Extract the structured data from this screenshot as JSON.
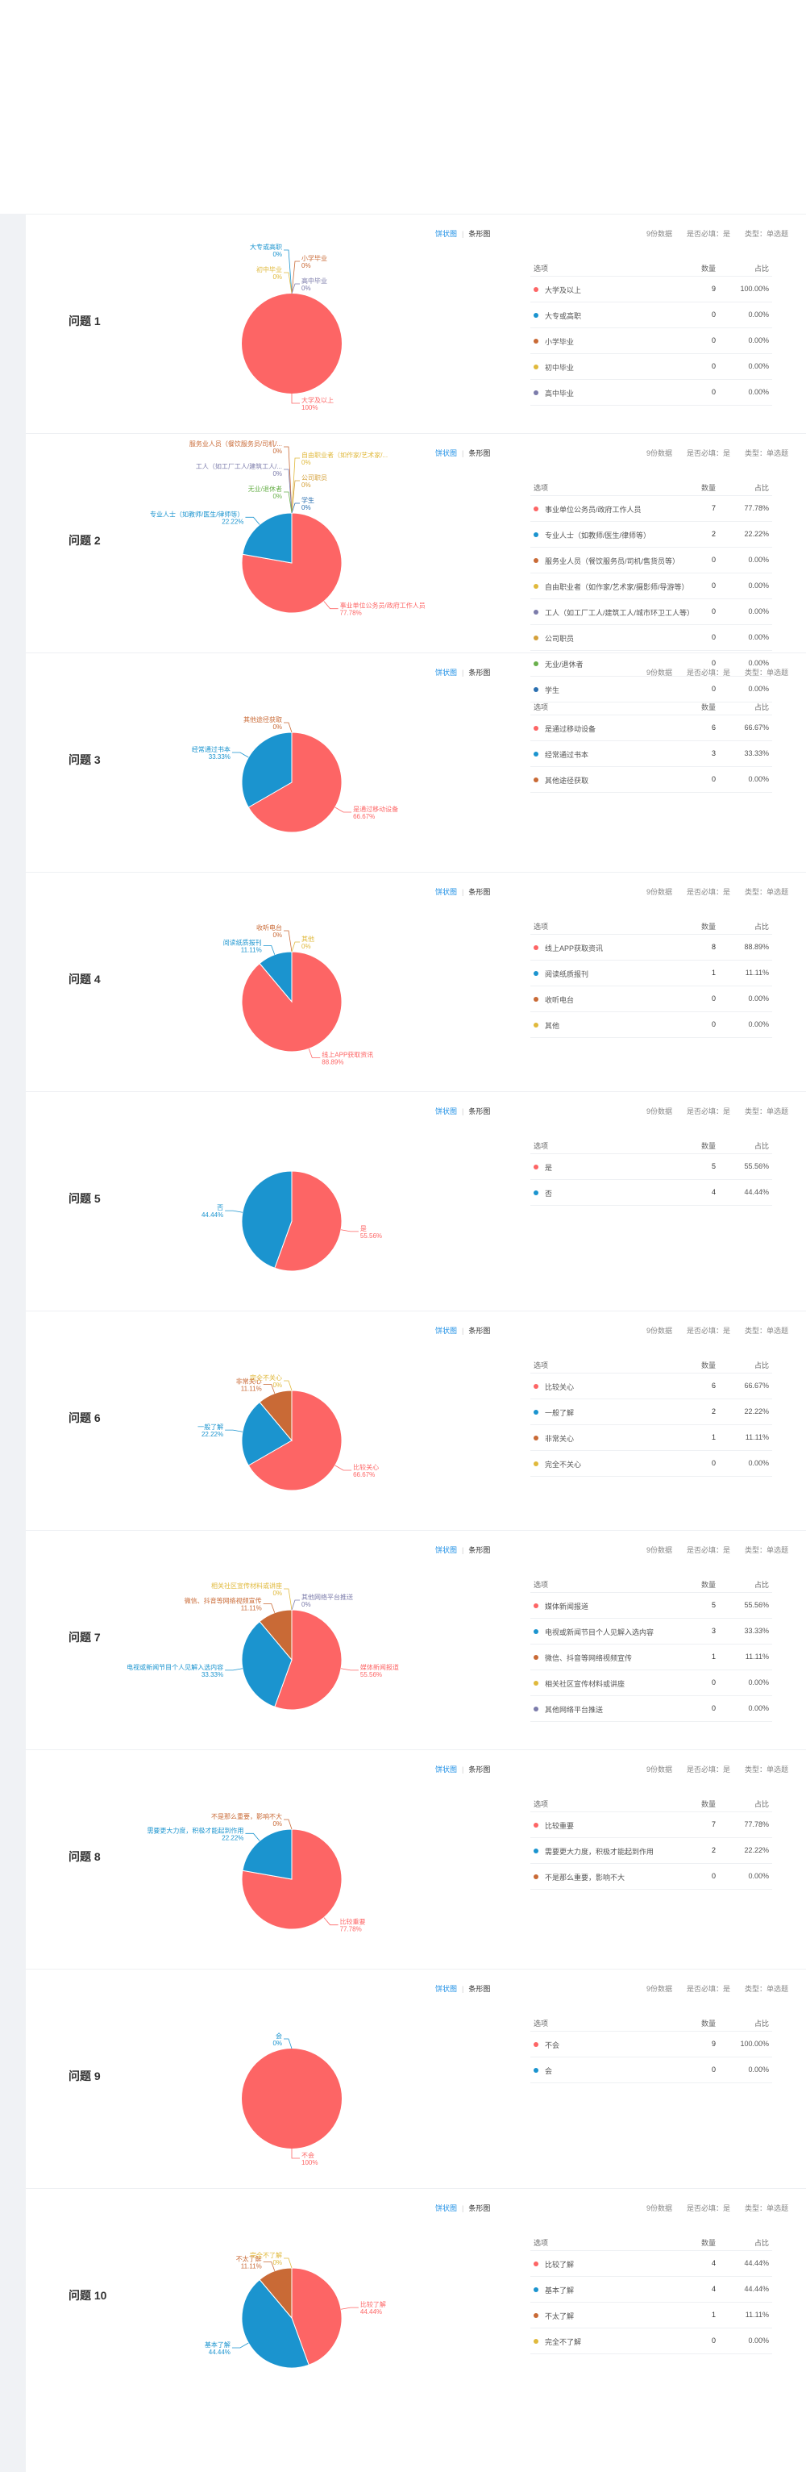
{
  "ui": {
    "view_pie": "饼状图",
    "view_bar": "条形图",
    "col_option": "选项",
    "col_count": "数量",
    "col_pct": "占比"
  },
  "colors": [
    "#fd6565",
    "#1b94cf",
    "#c96a36",
    "#e0b93c",
    "#7c7cab",
    "#d4a03a",
    "#6ab04c",
    "#2a6fb0"
  ],
  "questions": [
    {
      "title": "问题 1",
      "meta": {
        "valid": "9份数据",
        "required": "是否必填：是",
        "type": "类型：单选题"
      },
      "chart_data": {
        "type": "pie",
        "categories": [
          "大学及以上",
          "大专或高职",
          "小学毕业",
          "初中毕业",
          "高中毕业"
        ],
        "values": [
          9,
          0,
          0,
          0,
          0
        ],
        "percent": [
          "100.00%",
          "0.00%",
          "0.00%",
          "0.00%",
          "0.00%"
        ],
        "slice_labels": [
          "大学及以上",
          "大专或高职",
          "小学毕业",
          "初中毕业",
          "高中毕业"
        ],
        "slice_pcts": [
          "100%",
          "0%",
          "0%",
          "0%",
          "0%"
        ]
      }
    },
    {
      "title": "问题 2",
      "meta": {
        "valid": "9份数据",
        "required": "是否必填：是",
        "type": "类型：单选题"
      },
      "chart_data": {
        "type": "pie",
        "categories": [
          "事业单位公务员/政府工作人员",
          "专业人士（如教师/医生/律师等）",
          "服务业人员（餐饮服务员/司机/售货员等）",
          "自由职业者（如作家/艺术家/摄影师/导游等）",
          "工人（如工厂工人/建筑工人/城市环卫工人等）",
          "公司职员",
          "无业/退休者",
          "学生"
        ],
        "values": [
          7,
          2,
          0,
          0,
          0,
          0,
          0,
          0
        ],
        "percent": [
          "77.78%",
          "22.22%",
          "0.00%",
          "0.00%",
          "0.00%",
          "0.00%",
          "0.00%",
          "0.00%"
        ],
        "slice_labels": [
          "事业单位公务员/政府工作人员",
          "专业人士（如教师/医生/律师等）",
          "服务业人员（餐饮服务员/司机/...",
          "自由职业者（如作家/艺术家/...",
          "工人（如工厂工人/建筑工人/...",
          "公司职员",
          "无业/退休者",
          "学生"
        ],
        "slice_pcts": [
          "77.78%",
          "22.22%",
          "0%",
          "0%",
          "0%",
          "0%",
          "0%",
          "0%"
        ]
      }
    },
    {
      "title": "问题 3",
      "meta": {
        "valid": "9份数据",
        "required": "是否必填：是",
        "type": "类型：单选题"
      },
      "chart_data": {
        "type": "pie",
        "categories": [
          "是通过移动设备",
          "经常通过书本",
          "其他途径获取"
        ],
        "values": [
          6,
          3,
          0
        ],
        "percent": [
          "66.67%",
          "33.33%",
          "0.00%"
        ],
        "slice_labels": [
          "是通过移动设备",
          "经常通过书本",
          "其他途径获取"
        ],
        "slice_pcts": [
          "66.67%",
          "33.33%",
          "0%"
        ]
      }
    },
    {
      "title": "问题 4",
      "meta": {
        "valid": "9份数据",
        "required": "是否必填：是",
        "type": "类型：单选题"
      },
      "chart_data": {
        "type": "pie",
        "categories": [
          "线上APP获取资讯",
          "阅读纸质报刊",
          "收听电台",
          "其他"
        ],
        "values": [
          8,
          1,
          0,
          0
        ],
        "percent": [
          "88.89%",
          "11.11%",
          "0.00%",
          "0.00%"
        ],
        "slice_labels": [
          "线上APP获取资讯",
          "阅读纸质报刊",
          "收听电台",
          "其他"
        ],
        "slice_pcts": [
          "88.89%",
          "11.11%",
          "0%",
          "0%"
        ]
      }
    },
    {
      "title": "问题 5",
      "meta": {
        "valid": "9份数据",
        "required": "是否必填：是",
        "type": "类型：单选题"
      },
      "chart_data": {
        "type": "pie",
        "categories": [
          "是",
          "否"
        ],
        "values": [
          5,
          4
        ],
        "percent": [
          "55.56%",
          "44.44%"
        ],
        "slice_labels": [
          "是",
          "否"
        ],
        "slice_pcts": [
          "55.56%",
          "44.44%"
        ]
      }
    },
    {
      "title": "问题 6",
      "meta": {
        "valid": "9份数据",
        "required": "是否必填：是",
        "type": "类型：单选题"
      },
      "chart_data": {
        "type": "pie",
        "categories": [
          "比较关心",
          "一般了解",
          "非常关心",
          "完全不关心"
        ],
        "values": [
          6,
          2,
          1,
          0
        ],
        "percent": [
          "66.67%",
          "22.22%",
          "11.11%",
          "0.00%"
        ],
        "slice_labels": [
          "比较关心",
          "一般了解",
          "非常关心",
          "完全不关心"
        ],
        "slice_pcts": [
          "66.67%",
          "22.22%",
          "11.11%",
          "0%"
        ]
      }
    },
    {
      "title": "问题 7",
      "meta": {
        "valid": "9份数据",
        "required": "是否必填：是",
        "type": "类型：单选题"
      },
      "chart_data": {
        "type": "pie",
        "categories": [
          "媒体新闻报道",
          "电视或新闻节目个人见解入选内容",
          "微信、抖音等网络视频宣传",
          "相关社区宣传材料或讲座",
          "其他网络平台推送"
        ],
        "values": [
          5,
          3,
          1,
          0,
          0
        ],
        "percent": [
          "55.56%",
          "33.33%",
          "11.11%",
          "0.00%",
          "0.00%"
        ],
        "slice_labels": [
          "媒体新闻报道",
          "电视或新闻节目个人见解入选内容",
          "微信、抖音等网络视频宣传",
          "相关社区宣传材料或讲座",
          "其他网络平台推送"
        ],
        "slice_pcts": [
          "55.56%",
          "33.33%",
          "11.11%",
          "0%",
          "0%"
        ]
      }
    },
    {
      "title": "问题 8",
      "meta": {
        "valid": "9份数据",
        "required": "是否必填：是",
        "type": "类型：单选题"
      },
      "chart_data": {
        "type": "pie",
        "categories": [
          "比较重要",
          "需要更大力度，积极才能起到作用",
          "不是那么重要，影响不大"
        ],
        "values": [
          7,
          2,
          0
        ],
        "percent": [
          "77.78%",
          "22.22%",
          "0.00%"
        ],
        "slice_labels": [
          "比较重要",
          "需要更大力度，积极才能起到作用",
          "不是那么重要，影响不大"
        ],
        "slice_pcts": [
          "77.78%",
          "22.22%",
          "0%"
        ]
      }
    },
    {
      "title": "问题 9",
      "meta": {
        "valid": "9份数据",
        "required": "是否必填：是",
        "type": "类型：单选题"
      },
      "chart_data": {
        "type": "pie",
        "categories": [
          "不会",
          "会"
        ],
        "values": [
          9,
          0
        ],
        "percent": [
          "100.00%",
          "0.00%"
        ],
        "slice_labels": [
          "不会",
          "会"
        ],
        "slice_pcts": [
          "100%",
          "0%"
        ]
      }
    },
    {
      "title": "问题 10",
      "meta": {
        "valid": "9份数据",
        "required": "是否必填：是",
        "type": "类型：单选题"
      },
      "chart_data": {
        "type": "pie",
        "categories": [
          "比较了解",
          "基本了解",
          "不太了解",
          "完全不了解"
        ],
        "values": [
          4,
          4,
          1,
          0
        ],
        "percent": [
          "44.44%",
          "44.44%",
          "11.11%",
          "0.00%"
        ],
        "slice_labels": [
          "比较了解",
          "基本了解",
          "不太了解",
          "完全不了解"
        ],
        "slice_pcts": [
          "44.44%",
          "44.44%",
          "11.11%",
          "0%"
        ]
      }
    }
  ]
}
